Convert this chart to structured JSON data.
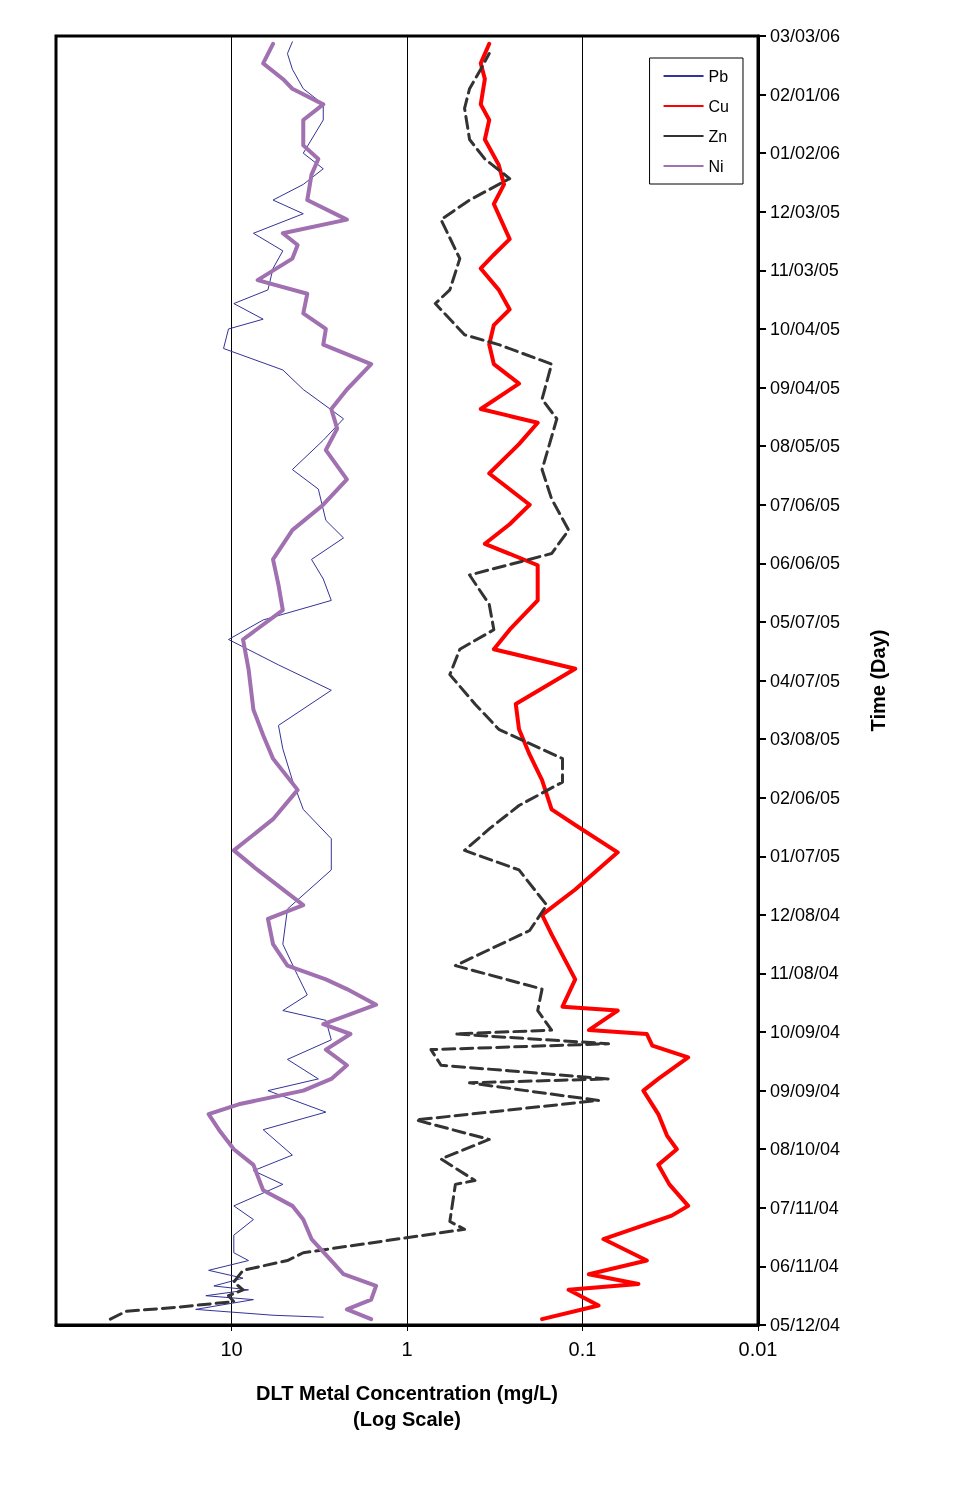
{
  "chart_data": {
    "type": "line",
    "orientation": "horizontal",
    "ylabel": "Time (Day)",
    "xlabel": "DLT Metal Concentration (mg/L)\n(Log Scale)",
    "log": "x",
    "grid": "x",
    "legend": "top right",
    "marker": "none",
    "ylim": [
      "2004-05-12",
      "2006-03-03"
    ],
    "yticks": [
      {
        "value": "2004-05-12",
        "label": "05/12/04"
      },
      {
        "value": "2004-06-11",
        "label": "06/11/04"
      },
      {
        "value": "2004-07-11",
        "label": "07/11/04"
      },
      {
        "value": "2004-08-10",
        "label": "08/10/04"
      },
      {
        "value": "2004-09-09",
        "label": "09/09/04"
      },
      {
        "value": "2004-10-09",
        "label": "10/09/04"
      },
      {
        "value": "2004-11-08",
        "label": "11/08/04"
      },
      {
        "value": "2004-12-08",
        "label": "12/08/04"
      },
      {
        "value": "2005-01-07",
        "label": "01/07/05"
      },
      {
        "value": "2005-02-06",
        "label": "02/06/05"
      },
      {
        "value": "2005-03-08",
        "label": "03/08/05"
      },
      {
        "value": "2005-04-07",
        "label": "04/07/05"
      },
      {
        "value": "2005-05-07",
        "label": "05/07/05"
      },
      {
        "value": "2005-06-06",
        "label": "06/06/05"
      },
      {
        "value": "2005-07-06",
        "label": "07/06/05"
      },
      {
        "value": "2005-08-05",
        "label": "08/05/05"
      },
      {
        "value": "2005-09-04",
        "label": "09/04/05"
      },
      {
        "value": "2005-10-04",
        "label": "10/04/05"
      },
      {
        "value": "2005-11-03",
        "label": "11/03/05"
      },
      {
        "value": "2005-12-03",
        "label": "12/03/05"
      },
      {
        "value": "2006-01-02",
        "label": "01/02/06"
      },
      {
        "value": "2006-02-01",
        "label": "02/01/06"
      },
      {
        "value": "2006-03-03",
        "label": "03/03/06"
      }
    ],
    "xlim": [
      100,
      0.01
    ],
    "xticks": [
      0.01,
      0.1,
      1,
      10
    ],
    "series": [
      {
        "name": "Pb",
        "color": "#333399",
        "line_style": "solid",
        "x": [
          "2004-05-16",
          "2004-05-17",
          "2004-05-20",
          "2004-05-25",
          "2004-05-27",
          "2004-05-30",
          "2004-06-01",
          "2004-06-05",
          "2004-06-09",
          "2004-06-14",
          "2004-06-18",
          "2004-06-27",
          "2004-07-05",
          "2004-07-12",
          "2004-07-23",
          "2004-07-30",
          "2004-08-07",
          "2004-08-20",
          "2004-08-29",
          "2004-09-09",
          "2004-09-15",
          "2004-09-25",
          "2004-10-05",
          "2004-10-15",
          "2004-10-20",
          "2004-10-28",
          "2004-11-07",
          "2004-11-23",
          "2004-12-11",
          "2004-12-31",
          "2005-01-16",
          "2005-01-31",
          "2005-02-15",
          "2005-03-03",
          "2005-03-15",
          "2005-04-02",
          "2005-04-15",
          "2005-04-28",
          "2005-05-08",
          "2005-05-18",
          "2005-05-29",
          "2005-06-08",
          "2005-06-19",
          "2005-06-28",
          "2005-07-14",
          "2005-07-24",
          "2005-08-08",
          "2005-08-19",
          "2005-09-03",
          "2005-09-13",
          "2005-09-24",
          "2005-10-04",
          "2005-10-09",
          "2005-10-17",
          "2005-10-24",
          "2005-11-04",
          "2005-11-13",
          "2005-11-22",
          "2005-12-02",
          "2005-12-09",
          "2005-12-17",
          "2005-12-25",
          "2006-01-02",
          "2006-01-19",
          "2006-01-27",
          "2006-02-04",
          "2006-02-14",
          "2006-02-22",
          "2006-02-28"
        ],
        "values": [
          3.0,
          5.8,
          16,
          7.5,
          14,
          8.0,
          12.6,
          8.6,
          13.5,
          8.0,
          9.7,
          9.7,
          7.5,
          9.7,
          5.1,
          7.5,
          4.5,
          6.6,
          2.9,
          6.2,
          3.2,
          4.8,
          2.7,
          2.9,
          5.1,
          3.7,
          4.2,
          5.1,
          4.8,
          2.7,
          2.7,
          3.9,
          4.5,
          5.1,
          5.4,
          2.7,
          5.4,
          10.4,
          6.6,
          2.7,
          3.0,
          3.5,
          2.3,
          2.9,
          3.2,
          4.5,
          3.0,
          2.3,
          3.9,
          5.1,
          11.1,
          10.4,
          6.6,
          9.7,
          6.2,
          5.8,
          5.1,
          7.5,
          3.9,
          5.8,
          3.9,
          3.0,
          3.9,
          3.0,
          3.0,
          3.9,
          4.5,
          4.8,
          4.5
        ]
      },
      {
        "name": "Cu",
        "color": "#ff0000",
        "line_style": "solid",
        "x": [
          "2004-05-15",
          "2004-05-22",
          "2004-05-30",
          "2004-06-02",
          "2004-06-07",
          "2004-06-14",
          "2004-06-25",
          "2004-07-07",
          "2004-07-12",
          "2004-07-23",
          "2004-08-02",
          "2004-08-10",
          "2004-08-17",
          "2004-08-28",
          "2004-09-09",
          "2004-09-15",
          "2004-09-26",
          "2004-10-02",
          "2004-10-08",
          "2004-10-10",
          "2004-10-20",
          "2004-10-22",
          "2004-11-05",
          "2004-11-28",
          "2004-12-08",
          "2004-12-21",
          "2005-01-09",
          "2005-01-23",
          "2005-01-31",
          "2005-02-15",
          "2005-02-28",
          "2005-03-13",
          "2005-03-26",
          "2005-04-13",
          "2005-04-23",
          "2005-05-03",
          "2005-05-18",
          "2005-06-05",
          "2005-06-16",
          "2005-06-26",
          "2005-07-06",
          "2005-07-22",
          "2005-08-06",
          "2005-08-17",
          "2005-08-24",
          "2005-09-06",
          "2005-09-16",
          "2005-09-26",
          "2005-10-06",
          "2005-10-14",
          "2005-10-24",
          "2005-11-04",
          "2005-11-11",
          "2005-11-19",
          "2005-12-07",
          "2005-12-17",
          "2005-12-27",
          "2006-01-09",
          "2006-01-19",
          "2006-01-27",
          "2006-02-09",
          "2006-02-17",
          "2006-02-27"
        ],
        "values": [
          0.17,
          0.081,
          0.12,
          0.048,
          0.092,
          0.043,
          0.076,
          0.031,
          0.025,
          0.032,
          0.037,
          0.029,
          0.033,
          0.037,
          0.045,
          0.037,
          0.025,
          0.04,
          0.043,
          0.092,
          0.063,
          0.13,
          0.11,
          0.15,
          0.17,
          0.11,
          0.063,
          0.11,
          0.15,
          0.17,
          0.2,
          0.23,
          0.24,
          0.11,
          0.32,
          0.26,
          0.18,
          0.18,
          0.36,
          0.26,
          0.2,
          0.34,
          0.23,
          0.18,
          0.38,
          0.23,
          0.32,
          0.34,
          0.32,
          0.26,
          0.3,
          0.38,
          0.32,
          0.26,
          0.32,
          0.28,
          0.3,
          0.36,
          0.34,
          0.38,
          0.36,
          0.38,
          0.34
        ]
      },
      {
        "name": "Zn",
        "color": "#333333",
        "line_style": "dashed",
        "x": [
          "2004-05-15",
          "2004-05-19",
          "2004-05-21",
          "2004-05-24",
          "2004-05-27",
          "2004-05-30",
          "2004-06-03",
          "2004-06-09",
          "2004-06-14",
          "2004-06-18",
          "2004-06-30",
          "2004-07-04",
          "2004-07-23",
          "2004-07-25",
          "2004-08-05",
          "2004-08-15",
          "2004-08-25",
          "2004-09-04",
          "2004-09-09",
          "2004-09-13",
          "2004-09-15",
          "2004-09-22",
          "2004-09-30",
          "2004-10-03",
          "2004-10-08",
          "2004-10-10",
          "2004-10-20",
          "2004-10-31",
          "2004-11-12",
          "2004-11-30",
          "2004-12-13",
          "2004-12-31",
          "2005-01-10",
          "2005-01-21",
          "2005-02-02",
          "2005-02-14",
          "2005-02-26",
          "2005-03-13",
          "2005-03-26",
          "2005-04-10",
          "2005-04-23",
          "2005-05-03",
          "2005-05-16",
          "2005-05-31",
          "2005-06-11",
          "2005-06-23",
          "2005-07-09",
          "2005-07-24",
          "2005-08-19",
          "2005-08-29",
          "2005-09-16",
          "2005-09-26",
          "2005-10-01",
          "2005-10-17",
          "2005-10-24",
          "2005-11-09",
          "2005-11-29",
          "2005-12-09",
          "2005-12-20",
          "2005-12-30",
          "2006-01-09",
          "2006-01-25",
          "2006-02-04",
          "2006-02-14",
          "2006-02-22"
        ],
        "values": [
          49,
          40,
          21,
          9.7,
          10.4,
          8.6,
          9.7,
          8.6,
          4.8,
          3.9,
          0.47,
          0.57,
          0.53,
          0.41,
          0.64,
          0.34,
          0.89,
          0.081,
          0.21,
          0.44,
          0.071,
          0.64,
          0.73,
          0.071,
          0.53,
          0.15,
          0.18,
          0.17,
          0.53,
          0.2,
          0.16,
          0.23,
          0.47,
          0.34,
          0.23,
          0.13,
          0.13,
          0.3,
          0.41,
          0.57,
          0.5,
          0.32,
          0.34,
          0.44,
          0.15,
          0.12,
          0.15,
          0.17,
          0.14,
          0.17,
          0.15,
          0.3,
          0.47,
          0.69,
          0.57,
          0.5,
          0.64,
          0.44,
          0.26,
          0.36,
          0.44,
          0.47,
          0.44,
          0.38,
          0.34
        ]
      },
      {
        "name": "Ni",
        "color": "#a070b0",
        "line_style": "solid",
        "x": [
          "2004-05-15",
          "2004-05-20",
          "2004-05-25",
          "2004-06-01",
          "2004-06-07",
          "2004-06-14",
          "2004-06-25",
          "2004-07-05",
          "2004-07-12",
          "2004-07-20",
          "2004-08-02",
          "2004-08-10",
          "2004-08-20",
          "2004-08-28",
          "2004-09-02",
          "2004-09-09",
          "2004-09-15",
          "2004-09-22",
          "2004-09-30",
          "2004-10-08",
          "2004-10-13",
          "2004-10-23",
          "2004-10-31",
          "2004-11-05",
          "2004-11-12",
          "2004-11-23",
          "2004-12-06",
          "2004-12-13",
          "2004-12-31",
          "2005-01-10",
          "2005-01-26",
          "2005-02-10",
          "2005-02-26",
          "2005-03-10",
          "2005-03-23",
          "2005-04-13",
          "2005-04-28",
          "2005-05-13",
          "2005-05-26",
          "2005-06-08",
          "2005-06-23",
          "2005-07-06",
          "2005-07-19",
          "2005-08-03",
          "2005-08-14",
          "2005-08-24",
          "2005-09-03",
          "2005-09-16",
          "2005-09-26",
          "2005-10-04",
          "2005-10-12",
          "2005-10-22",
          "2005-10-29",
          "2005-11-09",
          "2005-11-16",
          "2005-11-22",
          "2005-11-29",
          "2005-12-09",
          "2005-12-22",
          "2005-12-30",
          "2006-01-06",
          "2006-01-19",
          "2006-01-27",
          "2006-02-04",
          "2006-02-09",
          "2006-02-17",
          "2006-02-27"
        ],
        "values": [
          1.6,
          2.2,
          1.6,
          1.5,
          2.3,
          2.7,
          3.5,
          3.9,
          4.5,
          6.6,
          7.5,
          9.7,
          11.8,
          13.5,
          9.1,
          3.9,
          2.7,
          2.2,
          2.9,
          2.1,
          3.0,
          1.5,
          2.2,
          2.9,
          4.8,
          5.8,
          6.2,
          3.9,
          7.1,
          9.7,
          5.8,
          4.2,
          5.8,
          6.6,
          7.5,
          8.0,
          8.6,
          5.1,
          5.4,
          5.8,
          4.5,
          3.0,
          2.2,
          2.9,
          2.5,
          2.7,
          2.2,
          1.6,
          3.0,
          2.9,
          3.9,
          3.7,
          7.1,
          4.5,
          4.2,
          5.1,
          2.2,
          3.7,
          3.5,
          3.2,
          3.9,
          3.9,
          3.0,
          4.5,
          5.1,
          6.6,
          5.8
        ]
      }
    ]
  }
}
